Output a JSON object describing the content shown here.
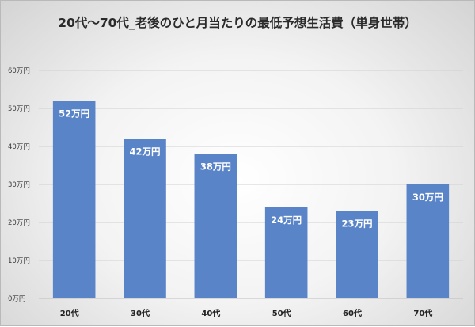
{
  "chart_data": {
    "type": "bar",
    "title": "20代～70代_老後のひと月当たりの最低予想生活費（単身世帯）",
    "categories": [
      "20代",
      "30代",
      "40代",
      "50代",
      "60代",
      "70代"
    ],
    "values": [
      52,
      42,
      38,
      24,
      23,
      30
    ],
    "data_labels": [
      "52万円",
      "42万円",
      "38万円",
      "24万円",
      "23万円",
      "30万円"
    ],
    "value_unit": "万円",
    "y_ticks": [
      "0万円",
      "10万円",
      "20万円",
      "30万円",
      "40万円",
      "50万円",
      "60万円"
    ],
    "ylim": [
      0,
      60
    ],
    "xlabel": "",
    "ylabel": "",
    "grid": true,
    "legend": "none",
    "colors": {
      "bar": "#5a84c8",
      "grid": "#d0d0d0",
      "data_label": "#ffffff"
    }
  }
}
